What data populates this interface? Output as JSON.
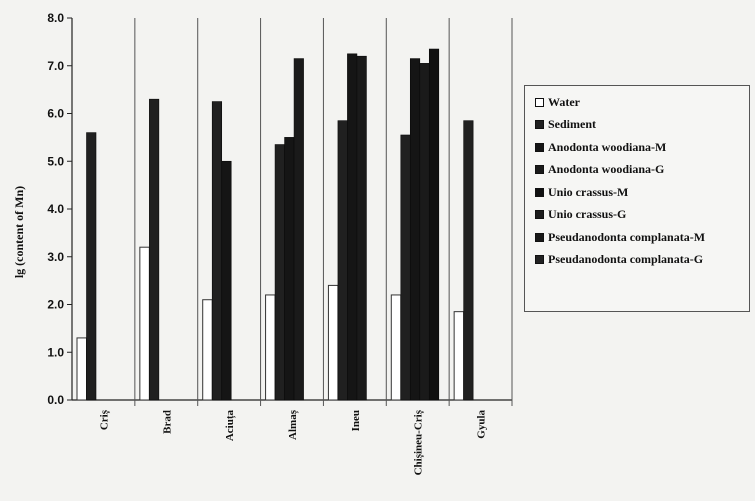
{
  "chart_data": {
    "type": "bar",
    "title": "",
    "xlabel": "",
    "ylabel": "lg (content of Mn)",
    "ylim": [
      0,
      8
    ],
    "yticks": [
      "0.0",
      "1.0",
      "2.0",
      "3.0",
      "4.0",
      "5.0",
      "6.0",
      "7.0",
      "8.0"
    ],
    "grid": "vertical separators between categories",
    "legend_position": "right",
    "categories": [
      "Criș",
      "Brad",
      "Aciuța",
      "Almaș",
      "Ineu",
      "Chișineu-Criș",
      "Gyula"
    ],
    "series": [
      {
        "name": "Water",
        "color": "#ffffff",
        "values": [
          1.3,
          3.2,
          2.1,
          2.2,
          2.4,
          2.2,
          1.85
        ]
      },
      {
        "name": "Sediment",
        "color": "#202020",
        "values": [
          5.6,
          6.3,
          6.25,
          5.35,
          5.85,
          5.55,
          5.85
        ]
      },
      {
        "name": "Anodonta woodiana-M",
        "color": "#151515",
        "values": [
          null,
          null,
          5.0,
          5.5,
          7.25,
          7.15,
          null
        ]
      },
      {
        "name": "Anodonta woodiana-G",
        "color": "#1a1a1a",
        "values": [
          null,
          null,
          null,
          7.15,
          7.2,
          7.05,
          null
        ]
      },
      {
        "name": "Unio crassus-M",
        "color": "#101010",
        "values": [
          null,
          null,
          null,
          null,
          null,
          7.35,
          null
        ]
      },
      {
        "name": "Unio crassus-G",
        "color": "#1c1c1c",
        "values": [
          null,
          null,
          null,
          null,
          null,
          null,
          null
        ]
      },
      {
        "name": "Pseudanodonta complanata-M",
        "color": "#181818",
        "values": [
          null,
          null,
          null,
          null,
          null,
          null,
          null
        ]
      },
      {
        "name": "Pseudanodonta complanata-G",
        "color": "#222222",
        "values": [
          null,
          null,
          null,
          null,
          null,
          null,
          null
        ]
      }
    ]
  }
}
